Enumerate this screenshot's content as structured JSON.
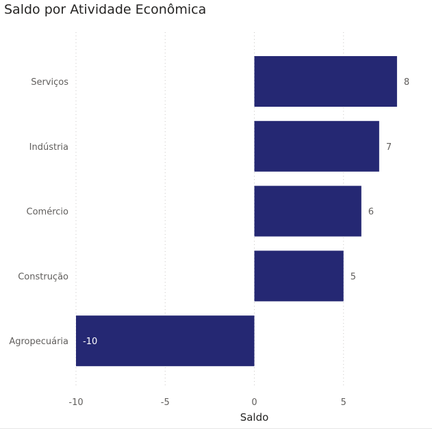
{
  "chart_data": {
    "type": "bar",
    "orientation": "horizontal",
    "title": "Saldo por Atividade Econômica",
    "xlabel": "Saldo",
    "ylabel": "",
    "categories": [
      "Serviços",
      "Indústria",
      "Comércio",
      "Construção",
      "Agropecuária"
    ],
    "values": [
      8,
      7,
      6,
      5,
      -10
    ],
    "xlim": [
      -10,
      10
    ],
    "xticks": [
      -10,
      -5,
      0,
      5
    ],
    "grid": true,
    "data_labels": true,
    "bar_color": "#252873",
    "label_color": "#605e5c",
    "inside_label_color": "#ffffff"
  }
}
